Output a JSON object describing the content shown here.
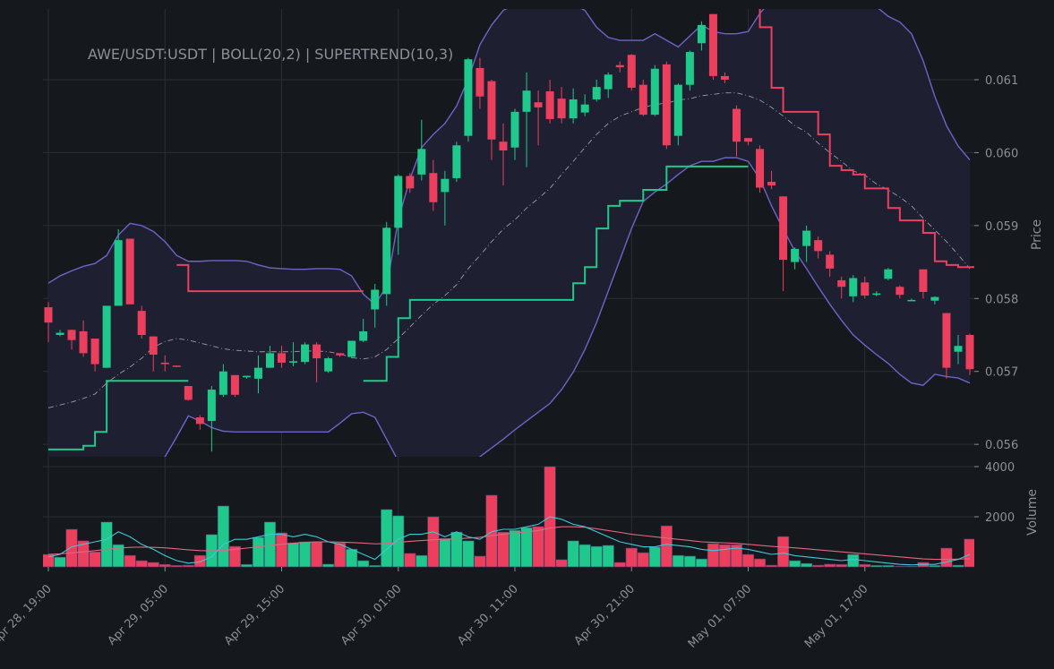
{
  "chart_data": {
    "type": "candlestick",
    "title": "AWE/USDT:USDT | BOLL(20,2) | SUPERTREND(10,3)",
    "y_label": "Price",
    "categories": [
      "Apr 28, 19:00",
      null,
      null,
      null,
      null,
      null,
      null,
      null,
      null,
      null,
      "Apr 29, 05:00",
      null,
      null,
      null,
      null,
      null,
      null,
      null,
      null,
      null,
      "Apr 29, 15:00",
      null,
      null,
      null,
      null,
      null,
      null,
      null,
      null,
      null,
      "Apr 30, 01:00",
      null,
      null,
      null,
      null,
      null,
      null,
      null,
      null,
      null,
      "Apr 30, 11:00",
      null,
      null,
      null,
      null,
      null,
      null,
      null,
      null,
      null,
      "Apr 30, 21:00",
      null,
      null,
      null,
      null,
      null,
      null,
      null,
      null,
      null,
      "May 01, 07:00",
      null,
      null,
      null,
      null,
      null,
      null,
      null,
      null,
      null,
      "May 01, 17:00",
      null,
      null,
      null,
      null,
      null,
      null,
      null,
      null,
      null
    ],
    "open": [
      0.05788,
      0.0575,
      0.05757,
      0.05755,
      0.05745,
      0.05705,
      0.0579,
      0.05882,
      0.05783,
      0.05748,
      0.05712,
      0.05708,
      0.0568,
      0.05637,
      0.05632,
      0.05668,
      0.05695,
      0.05692,
      0.0569,
      0.05705,
      0.05725,
      0.05712,
      0.05713,
      0.05737,
      0.057,
      0.05725,
      0.0572,
      0.05742,
      0.05785,
      0.05806,
      0.05897,
      0.05968,
      0.0597,
      0.05972,
      0.05946,
      0.05965,
      0.06023,
      0.06116,
      0.06098,
      0.06015,
      0.06007,
      0.06056,
      0.06069,
      0.06084,
      0.06074,
      0.06047,
      0.06055,
      0.06073,
      0.06087,
      0.0612,
      0.06134,
      0.06093,
      0.06052,
      0.06121,
      0.06023,
      0.06093,
      0.0615,
      0.0619,
      0.06105,
      0.0606,
      0.0602,
      0.06005,
      0.0596,
      0.0594,
      0.0585,
      0.05872,
      0.0588,
      0.0586,
      0.05825,
      0.05803,
      0.05822,
      0.05805,
      0.05827,
      0.05816,
      0.05798,
      0.0584,
      0.05797,
      0.0578,
      0.05727,
      0.0575
    ],
    "high": [
      0.05795,
      0.05757,
      0.05757,
      0.0577,
      0.05745,
      0.0579,
      0.05895,
      0.05882,
      0.0579,
      0.05748,
      0.05722,
      0.05708,
      0.0568,
      0.0564,
      0.0568,
      0.0571,
      0.05695,
      0.05694,
      0.05722,
      0.05735,
      0.05735,
      0.0574,
      0.0574,
      0.0574,
      0.0572,
      0.05725,
      0.05742,
      0.05772,
      0.0582,
      0.05905,
      0.0597,
      0.05972,
      0.06045,
      0.0599,
      0.05975,
      0.06015,
      0.0613,
      0.0613,
      0.061,
      0.0604,
      0.0606,
      0.0611,
      0.06085,
      0.061,
      0.0609,
      0.06088,
      0.0608,
      0.061,
      0.0611,
      0.06125,
      0.06135,
      0.061,
      0.0612,
      0.06125,
      0.06095,
      0.0614,
      0.0618,
      0.0619,
      0.0611,
      0.06065,
      0.0602,
      0.0601,
      0.05975,
      0.0594,
      0.0587,
      0.059,
      0.05885,
      0.05865,
      0.0583,
      0.05832,
      0.0583,
      0.0581,
      0.05842,
      0.05818,
      0.058,
      0.0584,
      0.05803,
      0.0578,
      0.0575,
      0.05752
    ],
    "low": [
      0.0574,
      0.05748,
      0.0573,
      0.0572,
      0.057,
      0.05705,
      0.0579,
      0.05792,
      0.05745,
      0.057,
      0.057,
      0.05706,
      0.0566,
      0.0562,
      0.0559,
      0.05665,
      0.05665,
      0.0569,
      0.0567,
      0.05705,
      0.05705,
      0.05707,
      0.0571,
      0.05685,
      0.05698,
      0.0572,
      0.05718,
      0.0574,
      0.0576,
      0.0579,
      0.0586,
      0.05945,
      0.05962,
      0.0592,
      0.059,
      0.0596,
      0.06015,
      0.0606,
      0.0599,
      0.05955,
      0.0599,
      0.0598,
      0.0601,
      0.0604,
      0.0604,
      0.0604,
      0.0605,
      0.0607,
      0.06075,
      0.0611,
      0.06085,
      0.0605,
      0.0605,
      0.06005,
      0.0601,
      0.06085,
      0.0614,
      0.061,
      0.06095,
      0.05995,
      0.0601,
      0.05945,
      0.0595,
      0.0581,
      0.0584,
      0.0585,
      0.05855,
      0.0583,
      0.058,
      0.05795,
      0.058,
      0.05803,
      0.05825,
      0.058,
      0.05797,
      0.058,
      0.05792,
      0.0569,
      0.0571,
      0.05695
    ],
    "close": [
      0.05767,
      0.05753,
      0.05743,
      0.05725,
      0.0571,
      0.0579,
      0.0588,
      0.05792,
      0.0575,
      0.05723,
      0.0571,
      0.05707,
      0.05661,
      0.05628,
      0.05675,
      0.057,
      0.05668,
      0.05694,
      0.05705,
      0.05725,
      0.05712,
      0.05714,
      0.05737,
      0.05718,
      0.05718,
      0.05722,
      0.05742,
      0.05755,
      0.05812,
      0.05897,
      0.05968,
      0.05951,
      0.06005,
      0.05932,
      0.05964,
      0.0601,
      0.06128,
      0.06077,
      0.06018,
      0.06003,
      0.06056,
      0.06085,
      0.06062,
      0.06046,
      0.06047,
      0.06073,
      0.06066,
      0.0609,
      0.06107,
      0.06117,
      0.06089,
      0.06052,
      0.06115,
      0.0601,
      0.06093,
      0.06138,
      0.06175,
      0.06105,
      0.061,
      0.06015,
      0.06015,
      0.05952,
      0.05955,
      0.05853,
      0.05868,
      0.05893,
      0.05865,
      0.05841,
      0.05816,
      0.05828,
      0.05804,
      0.05807,
      0.0584,
      0.05805,
      0.05798,
      0.05809,
      0.05802,
      0.05705,
      0.05735,
      0.05703
    ],
    "up_color": "#1ec98b",
    "down_color": "#ec3f5e",
    "ylim": [
      0.05583,
      0.06197
    ],
    "yticks": [
      0.056,
      0.057,
      0.058,
      0.059,
      {
        "value": 0.06,
        "label": "0.060"
      },
      0.061
    ],
    "grid": true,
    "bollinger": {
      "line_color": "#6f63c9",
      "middle_color": "#9a9aa6",
      "fill": "#1e2031",
      "upper": [
        0.05821,
        0.05831,
        0.05838,
        0.05844,
        0.05848,
        0.05859,
        0.05887,
        0.05903,
        0.059,
        0.05892,
        0.05878,
        0.05859,
        0.05851,
        0.05851,
        0.05852,
        0.05852,
        0.05852,
        0.05851,
        0.05846,
        0.05842,
        0.05841,
        0.0584,
        0.0584,
        0.05841,
        0.05841,
        0.0584,
        0.05831,
        0.05806,
        0.05792,
        0.05816,
        0.05908,
        0.05964,
        0.06007,
        0.06025,
        0.0604,
        0.06064,
        0.06101,
        0.06148,
        0.06175,
        0.06195,
        0.06204,
        0.06209,
        0.06212,
        0.06212,
        0.06209,
        0.06203,
        0.06195,
        0.06172,
        0.06158,
        0.06154,
        0.06154,
        0.06154,
        0.06163,
        0.06154,
        0.06145,
        0.0616,
        0.06175,
        0.06166,
        0.06163,
        0.06163,
        0.06166,
        0.06191,
        0.06209,
        0.06215,
        0.06215,
        0.06215,
        0.06215,
        0.06215,
        0.06215,
        0.06215,
        0.06215,
        0.062,
        0.06187,
        0.06179,
        0.06163,
        0.06126,
        0.06077,
        0.06037,
        0.06009,
        0.0599
      ],
      "middle": [
        0.0565,
        0.05654,
        0.05658,
        0.05663,
        0.05669,
        0.05684,
        0.05696,
        0.05706,
        0.05718,
        0.05733,
        0.05741,
        0.05745,
        0.05743,
        0.05739,
        0.05735,
        0.05731,
        0.05729,
        0.05728,
        0.05727,
        0.05727,
        0.05727,
        0.05727,
        0.05728,
        0.05728,
        0.05727,
        0.05724,
        0.05719,
        0.05717,
        0.0572,
        0.0573,
        0.05745,
        0.05761,
        0.05777,
        0.05792,
        0.05804,
        0.05819,
        0.05841,
        0.05859,
        0.05878,
        0.05895,
        0.05908,
        0.05924,
        0.05937,
        0.05951,
        0.0597,
        0.05988,
        0.06007,
        0.06025,
        0.0604,
        0.0605,
        0.06056,
        0.06062,
        0.06066,
        0.06068,
        0.06072,
        0.06074,
        0.06078,
        0.0608,
        0.06082,
        0.06082,
        0.06078,
        0.06072,
        0.06062,
        0.0605,
        0.06037,
        0.06028,
        0.06013,
        0.06,
        0.05988,
        0.05975,
        0.05969,
        0.05957,
        0.05949,
        0.05939,
        0.05927,
        0.0591,
        0.05894,
        0.05878,
        0.0586,
        0.05841
      ],
      "lower": [
        0.05485,
        0.05478,
        0.05475,
        0.05472,
        0.05469,
        0.05485,
        0.05507,
        0.05521,
        0.0554,
        0.05564,
        0.05583,
        0.0561,
        0.05639,
        0.05632,
        0.05623,
        0.05618,
        0.05617,
        0.05617,
        0.05617,
        0.05617,
        0.05617,
        0.05617,
        0.05617,
        0.05617,
        0.05617,
        0.05629,
        0.05642,
        0.05644,
        0.05637,
        0.05607,
        0.05577,
        0.05546,
        0.05528,
        0.05521,
        0.05515,
        0.05503,
        0.05521,
        0.05583,
        0.05595,
        0.05607,
        0.0562,
        0.05632,
        0.05644,
        0.05656,
        0.05675,
        0.05699,
        0.0573,
        0.05767,
        0.0581,
        0.05853,
        0.05896,
        0.05933,
        0.05946,
        0.05957,
        0.0597,
        0.05982,
        0.05988,
        0.05988,
        0.05993,
        0.05993,
        0.05988,
        0.05964,
        0.05927,
        0.05895,
        0.05865,
        0.05841,
        0.05816,
        0.05792,
        0.0577,
        0.0575,
        0.05736,
        0.05723,
        0.05711,
        0.05696,
        0.05684,
        0.05681,
        0.05696,
        0.05693,
        0.05691,
        0.05684
      ]
    },
    "supertrend": {
      "up_color": "#1ec98b",
      "down_color": "#ec3f5e",
      "up": [
        0.05593,
        0.05593,
        0.05593,
        0.05598,
        0.05617,
        0.05687,
        0.05687,
        0.05687,
        0.05687,
        0.05687,
        0.05687,
        0.05687,
        null,
        null,
        null,
        null,
        null,
        null,
        null,
        null,
        null,
        null,
        null,
        null,
        null,
        null,
        null,
        0.05687,
        0.05687,
        0.0572,
        0.05773,
        0.05798,
        0.05798,
        0.05798,
        0.05798,
        0.05798,
        0.05798,
        0.05798,
        0.05798,
        0.05798,
        0.05798,
        0.05798,
        0.05798,
        0.05798,
        0.05798,
        0.05821,
        0.05843,
        0.05896,
        0.05927,
        0.05934,
        0.05934,
        0.05949,
        0.05949,
        0.05981,
        0.05981,
        0.05981,
        0.05981,
        0.05981,
        0.05981,
        0.05981,
        null,
        null,
        null,
        null,
        null,
        null,
        null,
        null,
        null,
        null,
        null,
        null,
        null,
        null,
        null,
        null,
        null,
        null,
        null,
        null
      ],
      "down": [
        null,
        null,
        null,
        null,
        null,
        null,
        null,
        null,
        null,
        null,
        null,
        0.05846,
        0.0581,
        0.0581,
        0.0581,
        0.0581,
        0.0581,
        0.0581,
        0.0581,
        0.0581,
        0.0581,
        0.0581,
        0.0581,
        0.0581,
        0.0581,
        0.0581,
        0.0581,
        null,
        null,
        null,
        null,
        null,
        null,
        null,
        null,
        null,
        null,
        null,
        null,
        null,
        null,
        null,
        null,
        null,
        null,
        null,
        null,
        null,
        null,
        null,
        null,
        null,
        null,
        null,
        null,
        null,
        null,
        null,
        null,
        null,
        0.062,
        0.06172,
        0.06089,
        0.06056,
        0.06056,
        0.06056,
        0.06025,
        0.05982,
        0.05976,
        0.0597,
        0.05951,
        0.05951,
        0.05924,
        0.05907,
        0.05907,
        0.0589,
        0.05851,
        0.05846,
        0.05843,
        0.05843
      ]
    },
    "volume": {
      "label": "Volume",
      "values": [
        500,
        390,
        1500,
        1040,
        600,
        1790,
        890,
        460,
        250,
        180,
        100,
        60,
        70,
        460,
        1290,
        2430,
        820,
        100,
        1180,
        1790,
        1360,
        960,
        1000,
        1000,
        110,
        960,
        710,
        250,
        60,
        2290,
        2040,
        540,
        460,
        2000,
        1140,
        1390,
        1040,
        430,
        2860,
        1390,
        1460,
        1570,
        1610,
        4000,
        290,
        1040,
        890,
        820,
        860,
        180,
        750,
        570,
        790,
        1640,
        460,
        430,
        320,
        930,
        890,
        890,
        500,
        320,
        70,
        1210,
        250,
        140,
        70,
        110,
        100,
        500,
        100,
        60,
        60,
        30,
        30,
        180,
        60,
        750,
        70,
        1110
      ],
      "ylim": [
        0,
        4000
      ],
      "yticks": [
        2000,
        4000
      ],
      "ma_fast_color": "#3fc8d8",
      "ma_slow_color": "#e2677f",
      "ma_fast": [
        400,
        500,
        800,
        900,
        1000,
        1100,
        1400,
        1200,
        900,
        700,
        450,
        250,
        150,
        200,
        400,
        900,
        1100,
        1100,
        1200,
        1300,
        1300,
        1200,
        1300,
        1200,
        1000,
        900,
        700,
        500,
        300,
        700,
        1100,
        1300,
        1300,
        1400,
        1200,
        1400,
        1200,
        1100,
        1400,
        1500,
        1500,
        1600,
        1700,
        2000,
        1900,
        1700,
        1600,
        1400,
        1200,
        1000,
        900,
        800,
        800,
        900,
        850,
        800,
        700,
        650,
        700,
        750,
        700,
        600,
        500,
        550,
        450,
        400,
        350,
        300,
        250,
        300,
        250,
        200,
        150,
        100,
        80,
        100,
        100,
        200,
        300,
        500
      ],
      "ma_slow": [
        500,
        520,
        560,
        600,
        650,
        700,
        750,
        780,
        790,
        780,
        760,
        720,
        680,
        650,
        640,
        660,
        700,
        750,
        800,
        850,
        900,
        950,
        980,
        1000,
        1000,
        990,
        970,
        950,
        920,
        930,
        980,
        1020,
        1050,
        1080,
        1100,
        1120,
        1150,
        1180,
        1250,
        1300,
        1350,
        1400,
        1450,
        1550,
        1600,
        1600,
        1580,
        1520,
        1450,
        1380,
        1300,
        1250,
        1200,
        1150,
        1100,
        1050,
        1000,
        980,
        960,
        940,
        900,
        860,
        820,
        790,
        760,
        720,
        680,
        640,
        600,
        560,
        520,
        480,
        440,
        400,
        360,
        320,
        300,
        300,
        310,
        330
      ]
    }
  }
}
